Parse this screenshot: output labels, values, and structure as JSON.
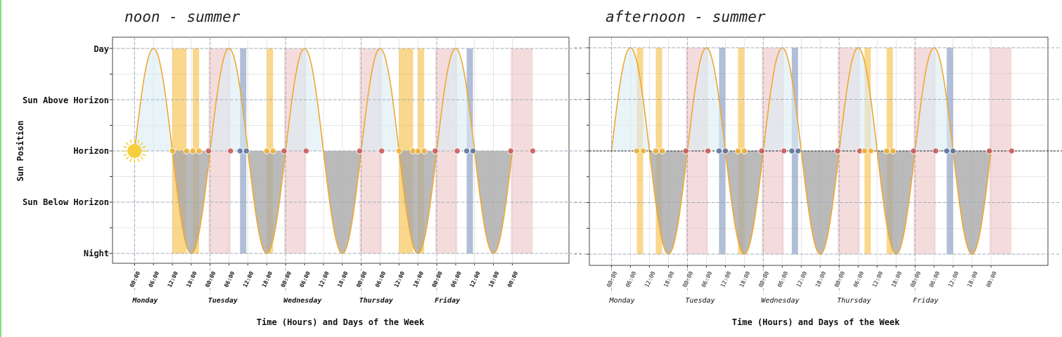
{
  "chart_data": [
    {
      "type": "area",
      "title": "noon - summer",
      "xlabel": "Time (Hours) and Days of the Week",
      "ylabel": "Sun Position",
      "y_categories": [
        "Night",
        "Sun Below Horizon",
        "Horizon",
        "Sun Above Horizon",
        "Day"
      ],
      "ylim": [
        -1,
        1
      ],
      "xlim_hours": [
        -7,
        138
      ],
      "x_ticks": [
        "00:00",
        "06:00",
        "12:00",
        "18:00",
        "00:00",
        "06:00",
        "12:00",
        "18:00",
        "00:00",
        "06:00",
        "12:00",
        "18:00",
        "00:00",
        "06:00",
        "12:00",
        "18:00",
        "00:00",
        "06:00",
        "12:00",
        "18:00",
        "00:00"
      ],
      "x_tick_hours": [
        0,
        6,
        12,
        18,
        24,
        30,
        36,
        42,
        48,
        54,
        60,
        66,
        72,
        78,
        84,
        90,
        96,
        102,
        108,
        114,
        120
      ],
      "days": [
        "Monday",
        "Tuesday",
        "Wednesday",
        "Thursday",
        "Friday"
      ],
      "day_start_hours": [
        0,
        24,
        48,
        72,
        96
      ],
      "curve": {
        "name": "sun position",
        "start_hour": 0,
        "end_hour": 120,
        "period_hours": 24,
        "peak_hour": 6,
        "amplitude": 1,
        "color": "#f0a830"
      },
      "fills": {
        "above": "#dbecf5",
        "below": "#a9a9a9"
      },
      "sun_icon": {
        "hour": 0,
        "value": 0,
        "color": "#f6cf3c"
      },
      "bands": [
        {
          "kind": "yellow",
          "start": 12,
          "end": 16.5
        },
        {
          "kind": "yellow",
          "start": 18.5,
          "end": 20.5
        },
        {
          "kind": "pink",
          "start": 23.5,
          "end": 30.5
        },
        {
          "kind": "blue",
          "start": 33.5,
          "end": 35.5
        },
        {
          "kind": "yellow",
          "start": 42,
          "end": 44
        },
        {
          "kind": "pink",
          "start": 47.5,
          "end": 54.5
        },
        {
          "kind": "pink",
          "start": 71.5,
          "end": 78.5
        },
        {
          "kind": "yellow",
          "start": 84,
          "end": 88.5
        },
        {
          "kind": "yellow",
          "start": 90,
          "end": 92
        },
        {
          "kind": "pink",
          "start": 95.5,
          "end": 102.5
        },
        {
          "kind": "blue",
          "start": 105.5,
          "end": 107.5
        },
        {
          "kind": "pink",
          "start": 119.5,
          "end": 126.5
        }
      ],
      "markers": [
        {
          "kind": "yellow",
          "hour": 12
        },
        {
          "kind": "yellow",
          "hour": 16.5
        },
        {
          "kind": "yellow",
          "hour": 18.5
        },
        {
          "kind": "yellow",
          "hour": 20.5
        },
        {
          "kind": "pink",
          "hour": 23.5
        },
        {
          "kind": "pink",
          "hour": 30.5
        },
        {
          "kind": "blue",
          "hour": 33.5
        },
        {
          "kind": "blue",
          "hour": 35.5
        },
        {
          "kind": "yellow",
          "hour": 42
        },
        {
          "kind": "yellow",
          "hour": 44
        },
        {
          "kind": "pink",
          "hour": 47.5
        },
        {
          "kind": "pink",
          "hour": 54.5
        },
        {
          "kind": "pink",
          "hour": 71.5
        },
        {
          "kind": "pink",
          "hour": 78.5
        },
        {
          "kind": "yellow",
          "hour": 84
        },
        {
          "kind": "yellow",
          "hour": 88.5
        },
        {
          "kind": "yellow",
          "hour": 90
        },
        {
          "kind": "yellow",
          "hour": 92
        },
        {
          "kind": "pink",
          "hour": 95.5
        },
        {
          "kind": "pink",
          "hour": 102.5
        },
        {
          "kind": "blue",
          "hour": 105.5
        },
        {
          "kind": "blue",
          "hour": 107.5
        },
        {
          "kind": "pink",
          "hour": 119.5
        },
        {
          "kind": "pink",
          "hour": 126.5
        }
      ]
    },
    {
      "type": "area",
      "title": "afternoon - summer",
      "xlabel": "Time (Hours) and Days of the Week",
      "ylabel": "",
      "ylim": [
        -1,
        1
      ],
      "xlim_hours": [
        -7,
        138
      ],
      "x_ticks": [
        "00:00",
        "06:00",
        "12:00",
        "18:00",
        "00:00",
        "06:00",
        "12:00",
        "18:00",
        "00:00",
        "06:00",
        "12:00",
        "18:00",
        "00:00",
        "06:00",
        "12:00",
        "18:00",
        "00:00",
        "06:00",
        "12:00",
        "18:00",
        "00:00"
      ],
      "x_tick_hours": [
        0,
        6,
        12,
        18,
        24,
        30,
        36,
        42,
        48,
        54,
        60,
        66,
        72,
        78,
        84,
        90,
        96,
        102,
        108,
        114,
        120
      ],
      "days": [
        "Monday",
        "Tuesday",
        "Wednesday",
        "Thursday",
        "Friday"
      ],
      "day_start_hours": [
        0,
        24,
        48,
        72,
        96
      ],
      "curve": {
        "name": "sun position",
        "start_hour": 0,
        "end_hour": 120,
        "period_hours": 24,
        "peak_hour": 6,
        "amplitude": 1,
        "color": "#f0a830"
      },
      "fills": {
        "above": "#dbecf5",
        "below": "#a9a9a9"
      },
      "horizon_line": true,
      "bands": [
        {
          "kind": "yellow",
          "start": 8,
          "end": 10
        },
        {
          "kind": "yellow",
          "start": 14,
          "end": 16
        },
        {
          "kind": "pink",
          "start": 23.5,
          "end": 30.5
        },
        {
          "kind": "blue",
          "start": 34,
          "end": 36
        },
        {
          "kind": "yellow",
          "start": 40,
          "end": 42
        },
        {
          "kind": "pink",
          "start": 47.5,
          "end": 54.5
        },
        {
          "kind": "blue",
          "start": 57,
          "end": 59
        },
        {
          "kind": "pink",
          "start": 71.5,
          "end": 78.5
        },
        {
          "kind": "yellow",
          "start": 80,
          "end": 82
        },
        {
          "kind": "yellow",
          "start": 87,
          "end": 89
        },
        {
          "kind": "pink",
          "start": 95.5,
          "end": 102.5
        },
        {
          "kind": "blue",
          "start": 106,
          "end": 108
        },
        {
          "kind": "pink",
          "start": 119.5,
          "end": 126.5
        }
      ],
      "markers": [
        {
          "kind": "yellow",
          "hour": 8
        },
        {
          "kind": "yellow",
          "hour": 10
        },
        {
          "kind": "yellow",
          "hour": 14
        },
        {
          "kind": "yellow",
          "hour": 16
        },
        {
          "kind": "pink",
          "hour": 23.5
        },
        {
          "kind": "pink",
          "hour": 30.5
        },
        {
          "kind": "blue",
          "hour": 34
        },
        {
          "kind": "blue",
          "hour": 36
        },
        {
          "kind": "yellow",
          "hour": 40
        },
        {
          "kind": "yellow",
          "hour": 42
        },
        {
          "kind": "pink",
          "hour": 47.5
        },
        {
          "kind": "pink",
          "hour": 54.5
        },
        {
          "kind": "blue",
          "hour": 57
        },
        {
          "kind": "blue",
          "hour": 59
        },
        {
          "kind": "pink",
          "hour": 71.5
        },
        {
          "kind": "pink",
          "hour": 78.5
        },
        {
          "kind": "yellow",
          "hour": 80
        },
        {
          "kind": "yellow",
          "hour": 82
        },
        {
          "kind": "yellow",
          "hour": 87
        },
        {
          "kind": "yellow",
          "hour": 89
        },
        {
          "kind": "pink",
          "hour": 95.5
        },
        {
          "kind": "pink",
          "hour": 102.5
        },
        {
          "kind": "blue",
          "hour": 106
        },
        {
          "kind": "blue",
          "hour": 108
        },
        {
          "kind": "pink",
          "hour": 119.5
        },
        {
          "kind": "pink",
          "hour": 126.5
        }
      ]
    }
  ],
  "colors": {
    "yellow_band": "#f6c14f",
    "pink_band": "#e9b9bc",
    "blue_band": "#7d93bd",
    "yellow_marker": "#f2b030",
    "pink_marker": "#cc5555",
    "blue_marker": "#5a7099",
    "grid_dash": "#9aaab8",
    "grid_light": "#dddddd"
  }
}
